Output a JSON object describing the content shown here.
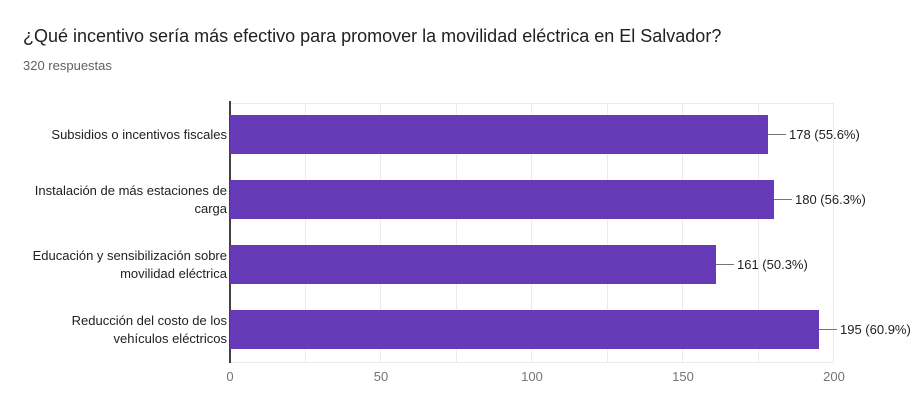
{
  "header": {
    "title": "¿Qué incentivo sería más efectivo para promover la movilidad eléctrica en El Salvador?",
    "subtitle": "320 respuestas"
  },
  "chart_data": {
    "type": "bar",
    "orientation": "horizontal",
    "title": "¿Qué incentivo sería más efectivo para promover la movilidad eléctrica en El Salvador?",
    "subtitle": "320 respuestas",
    "total_responses": 320,
    "categories": [
      "Subsidios o incentivos fiscales",
      "Instalación de más estaciones de carga",
      "Educación y sensibilización sobre movilidad eléctrica",
      "Reducción del costo de los vehículos eléctricos"
    ],
    "category_lines": [
      [
        "Subsidios o incentivos fiscales"
      ],
      [
        "Instalación de más estaciones de",
        "carga"
      ],
      [
        "Educación y sensibilización sobre",
        "movilidad eléctrica"
      ],
      [
        "Reducción del costo de los",
        "vehículos eléctricos"
      ]
    ],
    "values": [
      178,
      180,
      161,
      195
    ],
    "percentages": [
      55.6,
      56.3,
      50.3,
      60.9
    ],
    "value_labels": [
      "178 (55.6%)",
      "180 (56.3%)",
      "161 (50.3%)",
      "195 (60.9%)"
    ],
    "xlim": [
      0,
      200
    ],
    "x_ticks": [
      0,
      50,
      100,
      150,
      200
    ],
    "gridline_interval": 25,
    "legend": "none",
    "colors": {
      "bar": "#673ab7",
      "axis": "#424242",
      "gridline": "#ebebeb",
      "tick_text": "#757575",
      "label_text": "#212121",
      "subtitle_text": "#616161",
      "background": "#ffffff"
    }
  }
}
